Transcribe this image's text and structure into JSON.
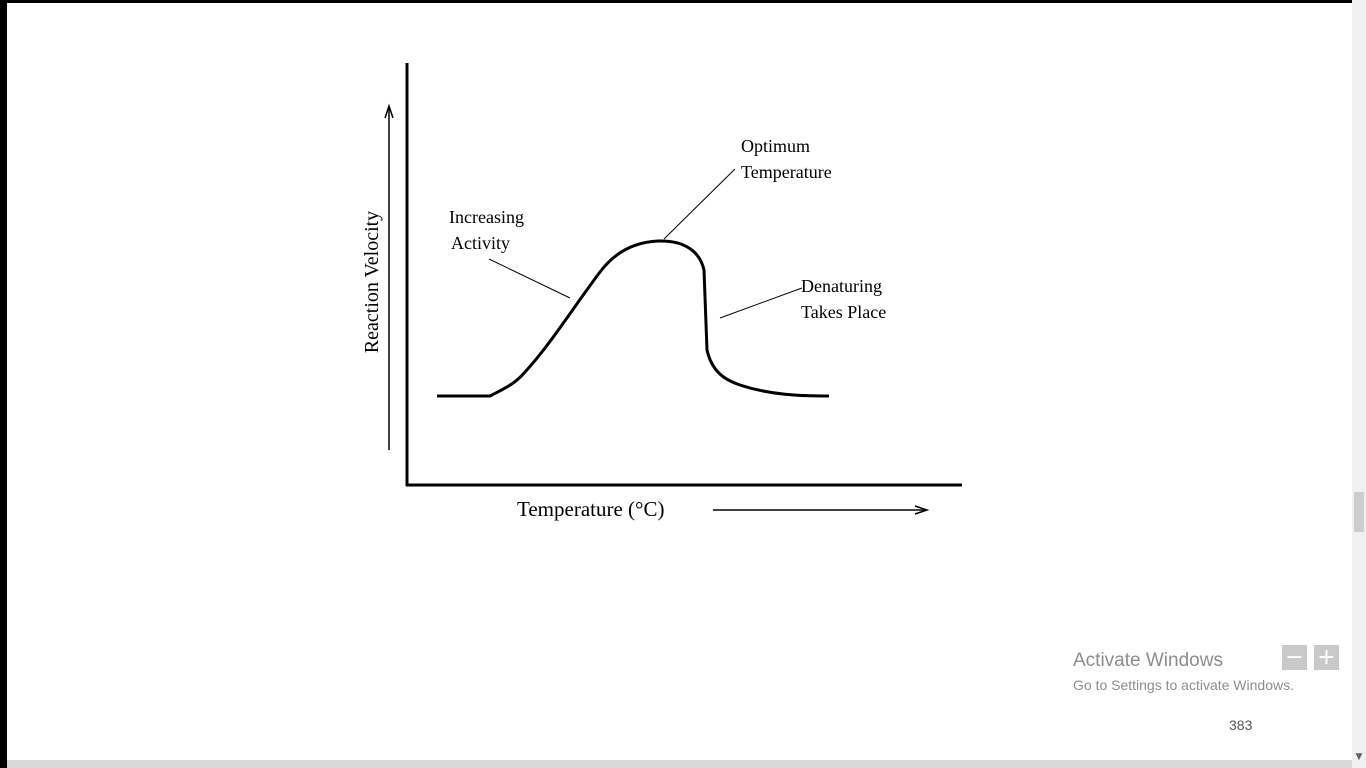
{
  "diagram": {
    "y_axis_label": "Reaction Velocity",
    "x_axis_label": "Temperature (°C)",
    "annotations": {
      "increasing_line1": "Increasing",
      "increasing_line2": "Activity",
      "optimum_line1": "Optimum",
      "optimum_line2": "Temperature",
      "denaturing_line1": "Denaturing",
      "denaturing_line2": "Takes Place"
    }
  },
  "watermark": {
    "title": "Activate Windows",
    "subtitle": "Go to Settings to activate Windows."
  },
  "zoom": {
    "out_label": "−",
    "in_label": "+"
  },
  "page_number": "383",
  "colors": {
    "ink": "#000000",
    "watermark": "#8d8d8d",
    "zoom_button": "#c9c9c9"
  }
}
